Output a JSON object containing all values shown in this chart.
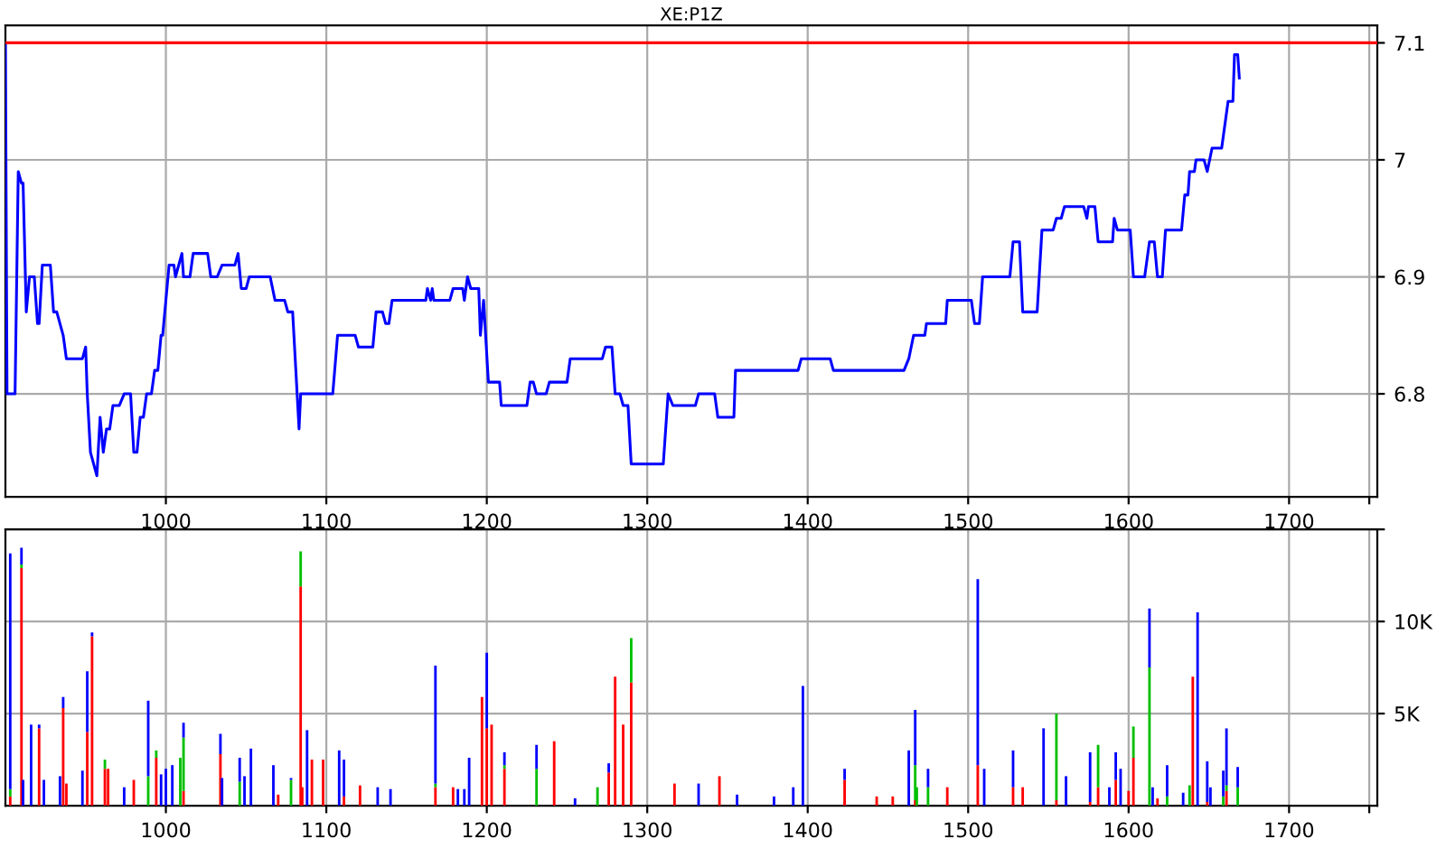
{
  "chart_data": [
    {
      "type": "line",
      "title": "XE:P1Z",
      "xlim": [
        900,
        1755
      ],
      "ylim": [
        6.712,
        7.115
      ],
      "xticks": [
        1000,
        1100,
        1200,
        1300,
        1400,
        1500,
        1600,
        1700,
        {
          "value": 1750,
          "label": null
        }
      ],
      "yticks": [
        6.8,
        6.9,
        7,
        7.1
      ],
      "grid": true,
      "marker": "none",
      "line_style": "solid",
      "ref_lines": [
        {
          "axis": "y",
          "value": 7.1,
          "label": null,
          "color": "#ff0000"
        }
      ],
      "series": [
        {
          "color": "#0000ff",
          "x": [
            900,
            901,
            906,
            908,
            910,
            911,
            913,
            915,
            918,
            920,
            921,
            923,
            928,
            930,
            932,
            934,
            936,
            938,
            948,
            950,
            951,
            953,
            955,
            957,
            959,
            961,
            963,
            965,
            967,
            971,
            974,
            978,
            980,
            982,
            984,
            986,
            988,
            991,
            993,
            995,
            997,
            998,
            1000,
            1002,
            1005,
            1006,
            1010,
            1011,
            1015,
            1017,
            1026,
            1028,
            1032,
            1035,
            1043,
            1045,
            1047,
            1050,
            1052,
            1065,
            1068,
            1074,
            1076,
            1079,
            1083,
            1084,
            1104,
            1107,
            1118,
            1120,
            1129,
            1131,
            1135,
            1137,
            1139,
            1141,
            1162,
            1163,
            1165,
            1166,
            1167,
            1177,
            1179,
            1185,
            1186,
            1188,
            1190,
            1195,
            1196,
            1198,
            1201,
            1208,
            1209,
            1225,
            1227,
            1229,
            1231,
            1237,
            1239,
            1250,
            1252,
            1272,
            1274,
            1278,
            1280,
            1283,
            1285,
            1288,
            1290,
            1310,
            1313,
            1316,
            1330,
            1332,
            1342,
            1344,
            1354,
            1355,
            1394,
            1396,
            1414,
            1416,
            1460,
            1463,
            1466,
            1473,
            1474,
            1486,
            1487,
            1502,
            1504,
            1507,
            1509,
            1526,
            1528,
            1532,
            1534,
            1543,
            1546,
            1553,
            1555,
            1558,
            1560,
            1572,
            1574,
            1575,
            1579,
            1581,
            1590,
            1591,
            1593,
            1601,
            1603,
            1610,
            1613,
            1616,
            1618,
            1621,
            1623,
            1633,
            1635,
            1637,
            1638,
            1641,
            1642,
            1647,
            1649,
            1652,
            1658,
            1662,
            1665,
            1666,
            1668,
            1669
          ],
          "values": [
            7.1,
            6.8,
            6.8,
            6.99,
            6.98,
            6.98,
            6.87,
            6.9,
            6.9,
            6.86,
            6.86,
            6.91,
            6.91,
            6.87,
            6.87,
            6.86,
            6.85,
            6.83,
            6.83,
            6.84,
            6.8,
            6.75,
            6.74,
            6.73,
            6.78,
            6.75,
            6.77,
            6.77,
            6.79,
            6.79,
            6.8,
            6.8,
            6.75,
            6.75,
            6.78,
            6.78,
            6.8,
            6.8,
            6.82,
            6.82,
            6.85,
            6.85,
            6.88,
            6.91,
            6.91,
            6.9,
            6.92,
            6.9,
            6.9,
            6.92,
            6.92,
            6.9,
            6.9,
            6.91,
            6.91,
            6.92,
            6.89,
            6.89,
            6.9,
            6.9,
            6.88,
            6.88,
            6.87,
            6.87,
            6.77,
            6.8,
            6.8,
            6.85,
            6.85,
            6.84,
            6.84,
            6.87,
            6.87,
            6.86,
            6.86,
            6.88,
            6.88,
            6.89,
            6.88,
            6.89,
            6.88,
            6.88,
            6.89,
            6.89,
            6.88,
            6.9,
            6.89,
            6.89,
            6.85,
            6.88,
            6.81,
            6.81,
            6.79,
            6.79,
            6.81,
            6.81,
            6.8,
            6.8,
            6.81,
            6.81,
            6.83,
            6.83,
            6.84,
            6.84,
            6.8,
            6.8,
            6.79,
            6.79,
            6.74,
            6.74,
            6.8,
            6.79,
            6.79,
            6.8,
            6.8,
            6.78,
            6.78,
            6.82,
            6.82,
            6.83,
            6.83,
            6.82,
            6.82,
            6.83,
            6.85,
            6.85,
            6.86,
            6.86,
            6.88,
            6.88,
            6.86,
            6.86,
            6.9,
            6.9,
            6.93,
            6.93,
            6.87,
            6.87,
            6.94,
            6.94,
            6.95,
            6.95,
            6.96,
            6.96,
            6.95,
            6.96,
            6.96,
            6.93,
            6.93,
            6.95,
            6.94,
            6.94,
            6.9,
            6.9,
            6.93,
            6.93,
            6.9,
            6.9,
            6.94,
            6.94,
            6.97,
            6.97,
            6.99,
            6.99,
            7.0,
            7.0,
            6.99,
            7.01,
            7.01,
            7.05,
            7.05,
            7.09,
            7.09,
            7.07
          ]
        }
      ]
    },
    {
      "type": "bar",
      "stacked": true,
      "xlim": [
        900,
        1755
      ],
      "ylim": [
        0,
        15000
      ],
      "xticks": [
        1000,
        1100,
        1200,
        1300,
        1400,
        1500,
        1600,
        1700,
        {
          "value": 1750,
          "label": null
        }
      ],
      "yticks": [
        {
          "value": 5000,
          "label": "5K"
        },
        {
          "value": 10000,
          "label": "10K"
        },
        {
          "value": 15000,
          "label": null
        }
      ],
      "grid": true,
      "x": [
        903,
        910,
        911,
        916,
        921,
        924,
        934,
        936,
        938,
        948,
        951,
        954,
        962,
        964,
        974,
        980,
        989,
        994,
        997,
        1000,
        1004,
        1009,
        1011,
        1034,
        1035,
        1046,
        1049,
        1053,
        1067,
        1070,
        1078,
        1084,
        1085,
        1088,
        1091,
        1098,
        1108,
        1111,
        1121,
        1132,
        1140,
        1168,
        1179,
        1182,
        1186,
        1189,
        1197,
        1200,
        1203,
        1211,
        1231,
        1242,
        1255,
        1269,
        1276,
        1280,
        1285,
        1290,
        1317,
        1332,
        1345,
        1356,
        1379,
        1391,
        1397,
        1423,
        1443,
        1453,
        1463,
        1467,
        1468,
        1475,
        1487,
        1506,
        1510,
        1528,
        1534,
        1547,
        1555,
        1561,
        1576,
        1581,
        1588,
        1592,
        1595,
        1600,
        1603,
        1613,
        1615,
        1618,
        1624,
        1634,
        1638,
        1640,
        1643,
        1649,
        1651,
        1659,
        1661,
        1668
      ],
      "series": [
        {
          "color": "#ff0000",
          "values": [
            500,
            12900,
            null,
            null,
            4200,
            null,
            null,
            5300,
            1200,
            null,
            4000,
            9200,
            2000,
            2000,
            null,
            1400,
            null,
            2600,
            null,
            null,
            null,
            null,
            800,
            2800,
            null,
            null,
            null,
            null,
            null,
            600,
            null,
            11900,
            1000,
            null,
            2500,
            2500,
            null,
            500,
            1100,
            null,
            null,
            1000,
            1000,
            null,
            null,
            null,
            5900,
            4200,
            4400,
            2000,
            null,
            3500,
            null,
            null,
            1800,
            7000,
            4400,
            6700,
            1200,
            null,
            1600,
            null,
            null,
            null,
            null,
            1400,
            500,
            500,
            null,
            300,
            null,
            null,
            1000,
            2200,
            null,
            1000,
            1000,
            null,
            300,
            null,
            200,
            1000,
            null,
            1400,
            null,
            800,
            2600,
            null,
            null,
            400,
            null,
            null,
            null,
            7000,
            null,
            200,
            null,
            null,
            800,
            null
          ]
        },
        {
          "color": "#00c000",
          "values": [
            400,
            200,
            null,
            null,
            null,
            null,
            null,
            null,
            null,
            null,
            null,
            null,
            500,
            null,
            null,
            null,
            1600,
            400,
            null,
            null,
            null,
            2600,
            2900,
            null,
            null,
            1300,
            null,
            null,
            null,
            null,
            1400,
            1900,
            null,
            null,
            null,
            null,
            null,
            null,
            null,
            null,
            null,
            200,
            null,
            null,
            null,
            null,
            null,
            null,
            null,
            200,
            2000,
            null,
            null,
            1000,
            null,
            null,
            null,
            2400,
            null,
            null,
            null,
            null,
            null,
            null,
            null,
            null,
            null,
            null,
            null,
            1900,
            1000,
            1000,
            null,
            null,
            null,
            null,
            null,
            null,
            4700,
            null,
            null,
            2300,
            null,
            null,
            null,
            null,
            1700,
            7500,
            null,
            null,
            500,
            null,
            1100,
            null,
            null,
            null,
            null,
            500,
            300,
            1000
          ]
        },
        {
          "color": "#0000ff",
          "values": [
            12800,
            900,
            1400,
            4400,
            200,
            1400,
            1600,
            600,
            null,
            1900,
            3300,
            200,
            null,
            null,
            1000,
            null,
            4100,
            null,
            1700,
            2000,
            2200,
            null,
            800,
            1100,
            1500,
            1300,
            1600,
            3100,
            2200,
            null,
            100,
            null,
            null,
            4100,
            null,
            null,
            3000,
            2000,
            null,
            1000,
            900,
            6400,
            null,
            900,
            900,
            2600,
            null,
            4100,
            null,
            700,
            1300,
            null,
            400,
            null,
            500,
            null,
            null,
            null,
            null,
            1200,
            null,
            600,
            500,
            1000,
            6500,
            600,
            null,
            null,
            3000,
            3000,
            null,
            1000,
            null,
            10100,
            2000,
            2000,
            null,
            4200,
            null,
            1600,
            2700,
            null,
            1000,
            1500,
            2000,
            null,
            null,
            3200,
            1000,
            null,
            1700,
            700,
            null,
            null,
            10500,
            2200,
            1000,
            1400,
            3100,
            1100
          ]
        }
      ]
    }
  ]
}
